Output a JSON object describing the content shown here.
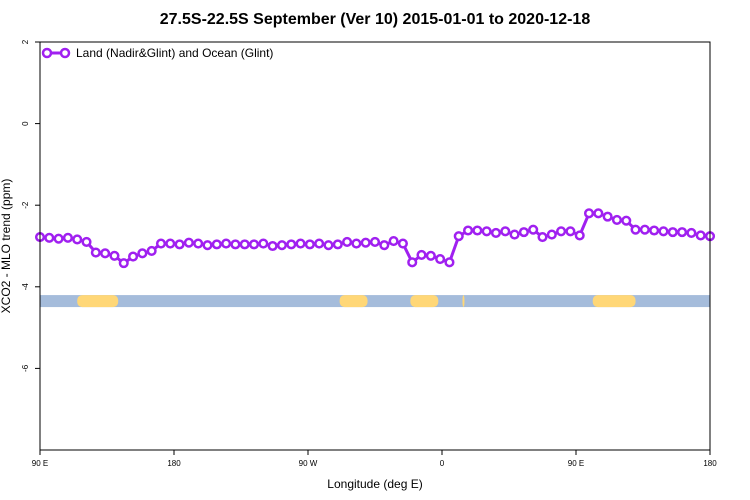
{
  "chart_data": {
    "type": "line",
    "title": "27.5S-22.5S September (Ver 10)   2015-01-01 to 2020-12-18",
    "xlabel": "Longitude (deg E)",
    "ylabel": "XCO2 - MLO trend (ppm)",
    "xlim": [
      90,
      450
    ],
    "ylim": [
      -8,
      2
    ],
    "x_ticks": [
      {
        "value": 90,
        "label": "90 E"
      },
      {
        "value": 162,
        "label": "180"
      },
      {
        "value": 234,
        "label": "90 W"
      },
      {
        "value": 306,
        "label": "0"
      },
      {
        "value": 378,
        "label": "90 E"
      },
      {
        "value": 450,
        "label": "180"
      }
    ],
    "y_ticks": [
      {
        "value": 2,
        "label": "2"
      },
      {
        "value": 0,
        "label": "0"
      },
      {
        "value": -2,
        "label": "-2"
      },
      {
        "value": -4,
        "label": "-4"
      },
      {
        "value": -6,
        "label": "-6"
      }
    ],
    "grid": false,
    "legend_position": "top-left",
    "series": [
      {
        "name": "Land (Nadir&Glint) and Ocean (Glint)",
        "color": "#a020f0",
        "x": [
          90,
          95,
          100,
          105,
          110,
          115,
          120,
          125,
          130,
          135,
          140,
          145,
          150,
          155,
          160,
          165,
          170,
          175,
          180,
          185,
          190,
          195,
          200,
          205,
          210,
          215,
          220,
          225,
          230,
          235,
          240,
          245,
          250,
          255,
          260,
          265,
          270,
          275,
          280,
          285,
          290,
          295,
          300,
          305,
          310,
          315,
          320,
          325,
          330,
          335,
          340,
          345,
          350,
          355,
          360,
          365,
          370,
          375,
          380,
          385,
          390,
          395,
          400,
          405,
          410,
          415,
          420,
          425,
          430,
          435,
          440,
          445,
          450
        ],
        "y": [
          -2.78,
          -2.8,
          -2.82,
          -2.8,
          -2.84,
          -2.9,
          -3.16,
          -3.18,
          -3.24,
          -3.42,
          -3.26,
          -3.18,
          -3.12,
          -2.94,
          -2.94,
          -2.96,
          -2.92,
          -2.94,
          -2.98,
          -2.96,
          -2.94,
          -2.96,
          -2.96,
          -2.96,
          -2.94,
          -3.0,
          -2.98,
          -2.96,
          -2.94,
          -2.96,
          -2.94,
          -2.98,
          -2.96,
          -2.9,
          -2.94,
          -2.92,
          -2.9,
          -2.98,
          -2.88,
          -2.94,
          -3.4,
          -3.22,
          -3.24,
          -3.32,
          -3.4,
          -2.76,
          -2.62,
          -2.62,
          -2.64,
          -2.68,
          -2.64,
          -2.72,
          -2.66,
          -2.6,
          -2.78,
          -2.72,
          -2.64,
          -2.64,
          -2.74,
          -2.2,
          -2.2,
          -2.28,
          -2.36,
          -2.38,
          -2.6,
          -2.6,
          -2.62,
          -2.64,
          -2.66,
          -2.66,
          -2.68,
          -2.74,
          -2.76
        ]
      }
    ],
    "surface_bar": {
      "y": -4.35,
      "ocean_color": "#a5bcdb",
      "land_color": "#ffd777",
      "land_segments": [
        [
          110,
          132
        ],
        [
          251,
          266
        ],
        [
          289,
          304
        ],
        [
          317,
          318
        ],
        [
          387,
          410
        ]
      ]
    }
  }
}
